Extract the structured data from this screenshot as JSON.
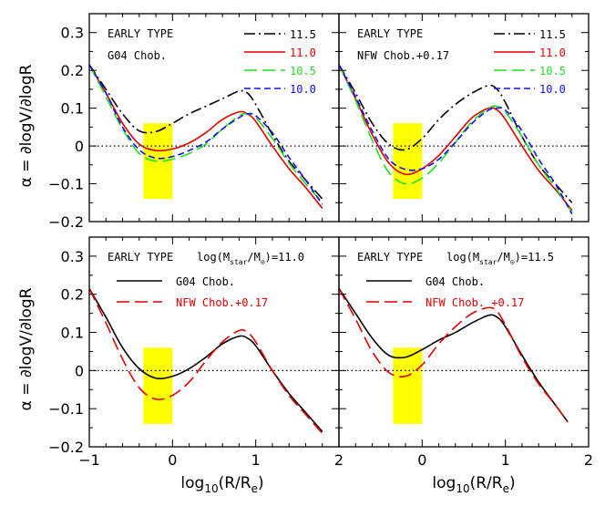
{
  "figure": {
    "ylabel": "α = ∂logV/∂logR",
    "xlabel_main": "log",
    "xlabel_sub": "10",
    "xlabel_rest": "(R/R",
    "xlabel_sub2": "e",
    "xlabel_close": ")"
  },
  "colors": {
    "black": "#000000",
    "red": "#e00000",
    "green": "#22dd22",
    "blue": "#1010ee",
    "band": "#ffff00"
  },
  "chart_data": [
    {
      "type": "line",
      "panel": "top-left",
      "xlim": [
        -1,
        2
      ],
      "ylim": [
        -0.2,
        0.35
      ],
      "xticks": [],
      "yticks": [
        "0.3",
        "0.2",
        "0.1",
        "0",
        "-0.1",
        "-0.2"
      ],
      "texts": [
        "EARLY TYPE",
        "G04 Chob."
      ],
      "highlight_band": {
        "x": [
          -0.35,
          0.0
        ],
        "y": [
          -0.14,
          0.06
        ]
      },
      "zero_line": true,
      "legend": {
        "position": "top-right",
        "entries": [
          "11.5",
          "11.0",
          "10.5",
          "10.0"
        ]
      },
      "series": [
        {
          "name": "11.5",
          "color": "black",
          "dash": "dashdot",
          "x": [
            -1.0,
            -0.8,
            -0.6,
            -0.4,
            -0.2,
            0.0,
            0.2,
            0.4,
            0.6,
            0.8,
            0.9,
            1.0,
            1.2,
            1.4,
            1.6,
            1.8
          ],
          "y": [
            0.215,
            0.15,
            0.085,
            0.04,
            0.038,
            0.06,
            0.085,
            0.105,
            0.125,
            0.145,
            0.14,
            0.11,
            0.03,
            -0.04,
            -0.09,
            -0.14
          ]
        },
        {
          "name": "11.0",
          "color": "red",
          "dash": "solid",
          "x": [
            -1.0,
            -0.8,
            -0.6,
            -0.4,
            -0.2,
            0.0,
            0.2,
            0.4,
            0.6,
            0.8,
            0.9,
            1.0,
            1.2,
            1.4,
            1.6,
            1.8
          ],
          "y": [
            0.215,
            0.14,
            0.06,
            0.005,
            -0.012,
            -0.008,
            0.008,
            0.035,
            0.07,
            0.09,
            0.085,
            0.065,
            0.0,
            -0.06,
            -0.11,
            -0.165
          ]
        },
        {
          "name": "10.5",
          "color": "green",
          "dash": "longdash",
          "x": [
            -1.0,
            -0.8,
            -0.6,
            -0.4,
            -0.2,
            0.0,
            0.2,
            0.4,
            0.6,
            0.8,
            0.9,
            1.0,
            1.2,
            1.4,
            1.6,
            1.8
          ],
          "y": [
            0.215,
            0.13,
            0.045,
            -0.02,
            -0.04,
            -0.035,
            -0.02,
            0.005,
            0.045,
            0.08,
            0.085,
            0.075,
            0.02,
            -0.045,
            -0.1,
            -0.15
          ]
        },
        {
          "name": "10.0",
          "color": "blue",
          "dash": "shortdash",
          "x": [
            -1.0,
            -0.8,
            -0.6,
            -0.4,
            -0.2,
            0.0,
            0.2,
            0.4,
            0.6,
            0.8,
            0.9,
            1.0,
            1.2,
            1.4,
            1.6,
            1.8
          ],
          "y": [
            0.215,
            0.14,
            0.05,
            -0.01,
            -0.032,
            -0.028,
            -0.012,
            0.01,
            0.045,
            0.075,
            0.085,
            0.08,
            0.035,
            -0.03,
            -0.09,
            -0.155
          ]
        }
      ]
    },
    {
      "type": "line",
      "panel": "top-right",
      "xlim": [
        -1,
        2
      ],
      "ylim": [
        -0.2,
        0.35
      ],
      "xticks": [],
      "yticks": [],
      "texts": [
        "EARLY TYPE",
        "NFW Chob.+0.17"
      ],
      "highlight_band": {
        "x": [
          -0.35,
          0.0
        ],
        "y": [
          -0.14,
          0.06
        ]
      },
      "zero_line": true,
      "legend": {
        "position": "top-right",
        "entries": [
          "11.5",
          "11.0",
          "10.5",
          "10.0"
        ]
      },
      "series": [
        {
          "name": "11.5",
          "color": "black",
          "dash": "dashdot",
          "x": [
            -1.0,
            -0.8,
            -0.6,
            -0.4,
            -0.2,
            0.0,
            0.2,
            0.4,
            0.6,
            0.8,
            0.9,
            1.0,
            1.2,
            1.4,
            1.6,
            1.8
          ],
          "y": [
            0.215,
            0.14,
            0.06,
            0.005,
            -0.01,
            0.02,
            0.07,
            0.11,
            0.14,
            0.16,
            0.15,
            0.115,
            0.025,
            -0.05,
            -0.1,
            -0.15
          ]
        },
        {
          "name": "11.0",
          "color": "red",
          "dash": "solid",
          "x": [
            -1.0,
            -0.8,
            -0.6,
            -0.4,
            -0.2,
            0.0,
            0.2,
            0.4,
            0.6,
            0.8,
            0.9,
            1.0,
            1.2,
            1.4,
            1.6,
            1.8
          ],
          "y": [
            0.215,
            0.125,
            0.03,
            -0.045,
            -0.075,
            -0.06,
            -0.025,
            0.025,
            0.075,
            0.1,
            0.095,
            0.07,
            0.0,
            -0.065,
            -0.115,
            -0.17
          ]
        },
        {
          "name": "10.5",
          "color": "green",
          "dash": "longdash",
          "x": [
            -1.0,
            -0.8,
            -0.6,
            -0.4,
            -0.2,
            0.0,
            0.2,
            0.4,
            0.6,
            0.8,
            0.9,
            1.0,
            1.2,
            1.4,
            1.6,
            1.8
          ],
          "y": [
            0.215,
            0.12,
            0.015,
            -0.07,
            -0.1,
            -0.085,
            -0.045,
            0.01,
            0.065,
            0.1,
            0.105,
            0.09,
            0.025,
            -0.05,
            -0.11,
            -0.175
          ]
        },
        {
          "name": "10.0",
          "color": "blue",
          "dash": "shortdash",
          "x": [
            -1.0,
            -0.8,
            -0.6,
            -0.4,
            -0.2,
            0.0,
            0.2,
            0.4,
            0.6,
            0.8,
            0.9,
            1.0,
            1.2,
            1.4,
            1.6,
            1.8
          ],
          "y": [
            0.215,
            0.13,
            0.04,
            -0.035,
            -0.062,
            -0.06,
            -0.035,
            0.01,
            0.06,
            0.095,
            0.1,
            0.095,
            0.04,
            -0.035,
            -0.1,
            -0.18
          ]
        }
      ]
    },
    {
      "type": "line",
      "panel": "bottom-left",
      "xlim": [
        -1,
        2
      ],
      "ylim": [
        -0.2,
        0.35
      ],
      "xticks": [
        "-1",
        "0",
        "1",
        "2"
      ],
      "yticks": [
        "0.3",
        "0.2",
        "0.1",
        "0",
        "-0.1",
        "-0.2"
      ],
      "texts": [
        "EARLY TYPE"
      ],
      "mass_label": {
        "prefix": "log(M",
        "sub": "star",
        "mid": "/M",
        "sub2": "⊙",
        "suffix": ")=11.0"
      },
      "highlight_band": {
        "x": [
          -0.35,
          0.0
        ],
        "y": [
          -0.14,
          0.06
        ]
      },
      "zero_line": true,
      "legend": {
        "position": "top-left",
        "entries": [
          "G04 Chob.",
          "NFW Chob.+0.17"
        ]
      },
      "series": [
        {
          "name": "G04 Chob.",
          "color": "black",
          "dash": "solid",
          "x": [
            -1.0,
            -0.8,
            -0.6,
            -0.4,
            -0.2,
            0.0,
            0.2,
            0.4,
            0.6,
            0.8,
            0.9,
            1.0,
            1.2,
            1.4,
            1.6,
            1.8
          ],
          "y": [
            0.215,
            0.14,
            0.06,
            0.005,
            -0.02,
            -0.015,
            0.005,
            0.035,
            0.07,
            0.09,
            0.085,
            0.065,
            0.0,
            -0.06,
            -0.11,
            -0.16
          ]
        },
        {
          "name": "NFW Chob.+0.17",
          "color": "red",
          "dash": "longdash",
          "x": [
            -1.0,
            -0.8,
            -0.6,
            -0.4,
            -0.2,
            0.0,
            0.2,
            0.4,
            0.6,
            0.8,
            0.9,
            1.0,
            1.2,
            1.4,
            1.6,
            1.8
          ],
          "y": [
            0.215,
            0.125,
            0.03,
            -0.045,
            -0.075,
            -0.065,
            -0.03,
            0.025,
            0.075,
            0.105,
            0.1,
            0.075,
            0.0,
            -0.065,
            -0.115,
            -0.165
          ]
        }
      ]
    },
    {
      "type": "line",
      "panel": "bottom-right",
      "xlim": [
        -1,
        2
      ],
      "ylim": [
        -0.2,
        0.35
      ],
      "xticks": [
        "0",
        "1",
        "2"
      ],
      "yticks": [],
      "texts": [
        "EARLY TYPE"
      ],
      "mass_label": {
        "prefix": "log(M",
        "sub": "star",
        "mid": "/M",
        "sub2": "⊙",
        "suffix": ")=11.5"
      },
      "highlight_band": {
        "x": [
          -0.35,
          0.0
        ],
        "y": [
          -0.14,
          0.06
        ]
      },
      "zero_line": true,
      "legend": {
        "position": "top-left",
        "entries": [
          "G04 Chob.",
          "NFW Chob. +0.17"
        ]
      },
      "series": [
        {
          "name": "G04 Chob.",
          "color": "black",
          "dash": "solid",
          "x": [
            -1.0,
            -0.8,
            -0.6,
            -0.4,
            -0.2,
            0.0,
            0.2,
            0.4,
            0.6,
            0.8,
            0.9,
            1.0,
            1.2,
            1.4,
            1.6,
            1.75
          ],
          "y": [
            0.215,
            0.15,
            0.085,
            0.04,
            0.035,
            0.055,
            0.08,
            0.1,
            0.125,
            0.145,
            0.14,
            0.115,
            0.04,
            -0.03,
            -0.09,
            -0.135
          ]
        },
        {
          "name": "NFW Chob. +0.17",
          "color": "red",
          "dash": "longdash",
          "x": [
            -1.0,
            -0.8,
            -0.6,
            -0.4,
            -0.2,
            0.0,
            0.2,
            0.4,
            0.6,
            0.8,
            0.9,
            1.0,
            1.2,
            1.4,
            1.6,
            1.75
          ],
          "y": [
            0.215,
            0.135,
            0.05,
            -0.005,
            -0.015,
            0.015,
            0.07,
            0.115,
            0.15,
            0.165,
            0.155,
            0.12,
            0.035,
            -0.035,
            -0.09,
            -0.135
          ]
        }
      ]
    }
  ]
}
